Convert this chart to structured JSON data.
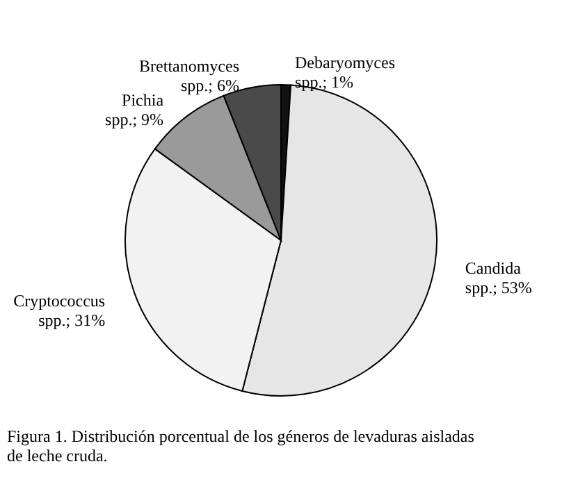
{
  "chart_data": {
    "type": "pie",
    "categories": [
      "Debaryomyces spp.",
      "Candida spp.",
      "Cryptococcus spp.",
      "Pichia spp.",
      "Brettanomyces spp."
    ],
    "values": [
      1,
      53,
      31,
      9,
      6
    ],
    "value_labels": [
      "1%",
      "53%",
      "31%",
      "9%",
      "6%"
    ],
    "colors": [
      "#111111",
      "#e6e6e6",
      "#f2f2f2",
      "#9a9a9a",
      "#4a4a4a"
    ],
    "annotations": [
      "Figura 1. Distribución porcentual de los géneros de levaduras aisladas de leche cruda."
    ]
  }
}
